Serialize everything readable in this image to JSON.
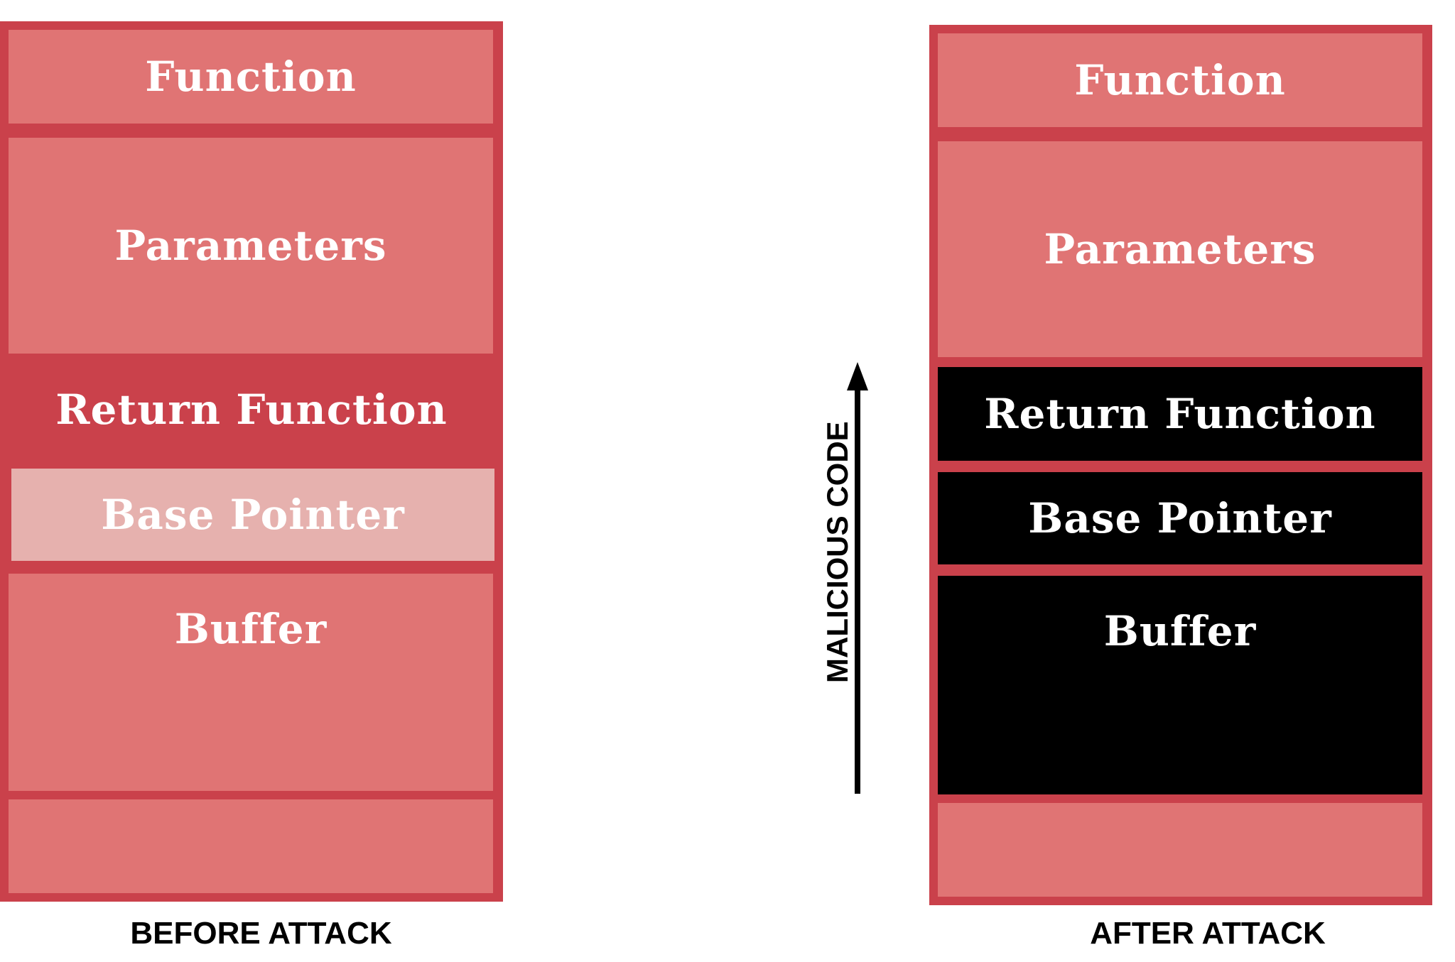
{
  "before": {
    "caption": "BEFORE ATTACK",
    "cells": {
      "function": "Function",
      "parameters": "Parameters",
      "return_function": "Return Function",
      "base_pointer": "Base Pointer",
      "buffer": "Buffer"
    }
  },
  "after": {
    "caption": "AFTER ATTACK",
    "cells": {
      "function": "Function",
      "parameters": "Parameters",
      "return_function": "Return Function",
      "base_pointer": "Base Pointer",
      "buffer": "Buffer"
    }
  },
  "arrow": {
    "label": "MALICIOUS CODE"
  },
  "colors": {
    "border": "#ca414b",
    "cell": "#e07474",
    "return_before": "#ca414b",
    "base_before": "#e6b1ae",
    "overwritten": "#000000",
    "text": "#ffffff"
  }
}
